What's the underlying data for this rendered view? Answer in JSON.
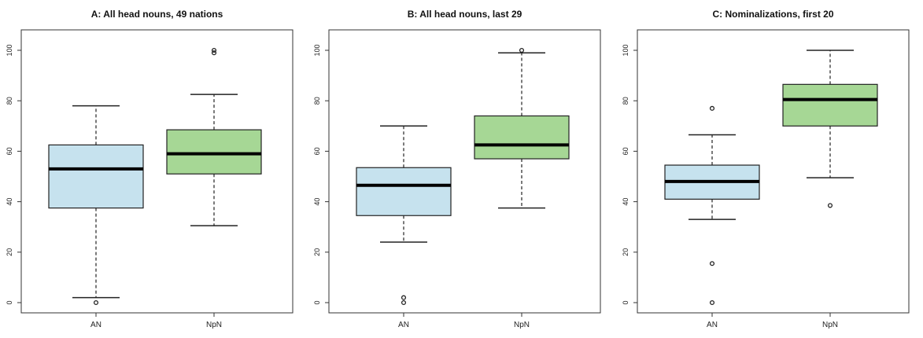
{
  "chart_data": [
    {
      "type": "box",
      "title": "A: All head nouns, 49 nations",
      "categories": [
        "AN",
        "NpN"
      ],
      "ylim": [
        0,
        100
      ],
      "yticks": [
        "0",
        "20",
        "40",
        "60",
        "80",
        "100"
      ],
      "boxes": [
        {
          "name": "AN",
          "min": 2,
          "q1": 37.5,
          "median": 53,
          "q3": 62.5,
          "max": 78,
          "outliers": [
            0
          ],
          "color": "#c6e2ee"
        },
        {
          "name": "NpN",
          "min": 30.5,
          "q1": 51,
          "median": 59,
          "q3": 68.5,
          "max": 82.5,
          "outliers": [
            99,
            100
          ],
          "color": "#a6d795"
        }
      ],
      "grid": false
    },
    {
      "type": "box",
      "title": "B: All head nouns, last 29",
      "categories": [
        "AN",
        "NpN"
      ],
      "ylim": [
        0,
        100
      ],
      "yticks": [
        "0",
        "20",
        "40",
        "60",
        "80",
        "100"
      ],
      "boxes": [
        {
          "name": "AN",
          "min": 24,
          "q1": 34.5,
          "median": 46.5,
          "q3": 53.5,
          "max": 70,
          "outliers": [
            0,
            2
          ],
          "color": "#c6e2ee"
        },
        {
          "name": "NpN",
          "min": 37.5,
          "q1": 57,
          "median": 62.5,
          "q3": 74,
          "max": 99,
          "outliers": [
            100
          ],
          "color": "#a6d795"
        }
      ],
      "grid": false
    },
    {
      "type": "box",
      "title": "C: Nominalizations, first 20",
      "categories": [
        "AN",
        "NpN"
      ],
      "ylim": [
        0,
        100
      ],
      "yticks": [
        "0",
        "20",
        "40",
        "60",
        "80",
        "100"
      ],
      "boxes": [
        {
          "name": "AN",
          "min": 33,
          "q1": 41,
          "median": 48,
          "q3": 54.5,
          "max": 66.5,
          "outliers": [
            77,
            15.5,
            0
          ],
          "color": "#c6e2ee"
        },
        {
          "name": "NpN",
          "min": 49.5,
          "q1": 70,
          "median": 80.5,
          "q3": 86.5,
          "max": 100,
          "outliers": [
            38.5
          ],
          "color": "#a6d795"
        }
      ],
      "grid": false
    }
  ]
}
